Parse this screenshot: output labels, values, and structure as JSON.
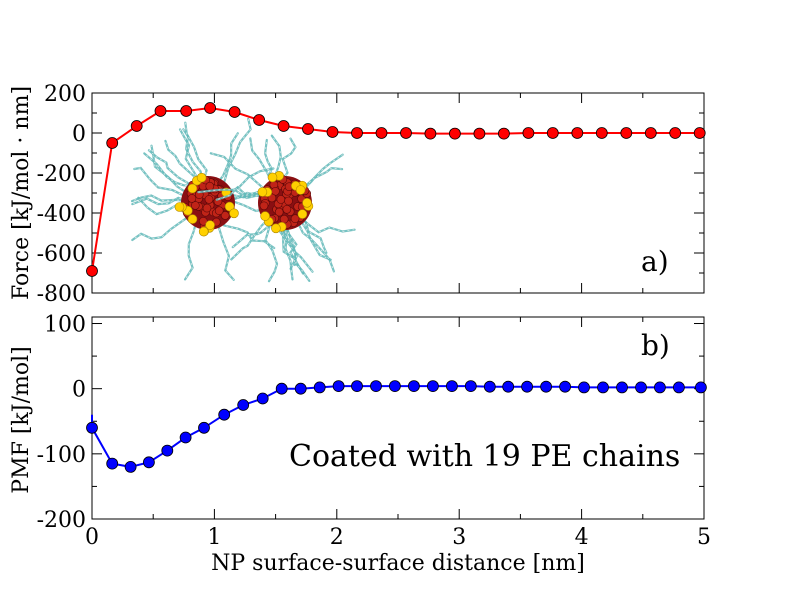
{
  "chart_data": [
    {
      "type": "line",
      "panel_label": "a)",
      "ylabel": "Force [kJ/mol · nm]",
      "xlabel": "",
      "xlim": [
        0,
        5
      ],
      "ylim": [
        -800,
        200
      ],
      "yticks": [
        200,
        0,
        -200,
        -400,
        -600,
        -800
      ],
      "ytick_labels": [
        "200",
        "0",
        "-200",
        "-400",
        "-600",
        "-800"
      ],
      "inset_image": "two coated nanoparticles with polymer chains",
      "series": [
        {
          "name": "Force",
          "color": "#ff0000",
          "x": [
            0.0,
            0.165,
            0.365,
            0.56,
            0.77,
            0.965,
            1.165,
            1.365,
            1.565,
            1.765,
            1.965,
            2.165,
            2.365,
            2.565,
            2.765,
            2.965,
            3.165,
            3.365,
            3.565,
            3.765,
            3.965,
            4.165,
            4.365,
            4.565,
            4.765,
            4.965
          ],
          "y": [
            -690,
            -50,
            35,
            110,
            110,
            125,
            105,
            65,
            35,
            20,
            5,
            0,
            0,
            0,
            -3,
            -3,
            -3,
            -3,
            0,
            0,
            0,
            0,
            0,
            0,
            0,
            0
          ]
        }
      ]
    },
    {
      "type": "line",
      "panel_label": "b)",
      "ylabel": "PMF [kJ/mol]",
      "xlabel": "NP surface-surface distance [nm]",
      "xlim": [
        0,
        5
      ],
      "ylim": [
        -200,
        110
      ],
      "xticks": [
        0,
        1,
        2,
        3,
        4,
        5
      ],
      "xtick_labels": [
        "0",
        "1",
        "2",
        "3",
        "4",
        "5"
      ],
      "yticks": [
        100,
        0,
        -100,
        -200
      ],
      "ytick_labels": [
        "100",
        "0",
        "-100",
        "-200"
      ],
      "annotation": "Coated with 19 PE chains",
      "series": [
        {
          "name": "PMF",
          "color": "#0000ff",
          "x": [
            0.0,
            0.165,
            0.315,
            0.465,
            0.615,
            0.765,
            0.915,
            1.08,
            1.235,
            1.395,
            1.55,
            1.705,
            1.86,
            2.015,
            2.165,
            2.32,
            2.475,
            2.63,
            2.785,
            2.94,
            3.095,
            3.25,
            3.4,
            3.555,
            3.71,
            3.865,
            4.02,
            4.175,
            4.33,
            4.485,
            4.64,
            4.795,
            4.975
          ],
          "y": [
            -60,
            -115,
            -120,
            -113,
            -95,
            -75,
            -60,
            -40,
            -25,
            -15,
            0,
            0,
            2,
            4,
            4,
            4,
            4,
            4,
            4,
            4,
            4,
            3,
            3,
            3,
            3,
            3,
            2,
            2,
            2,
            2,
            2,
            2,
            2
          ]
        }
      ]
    }
  ]
}
